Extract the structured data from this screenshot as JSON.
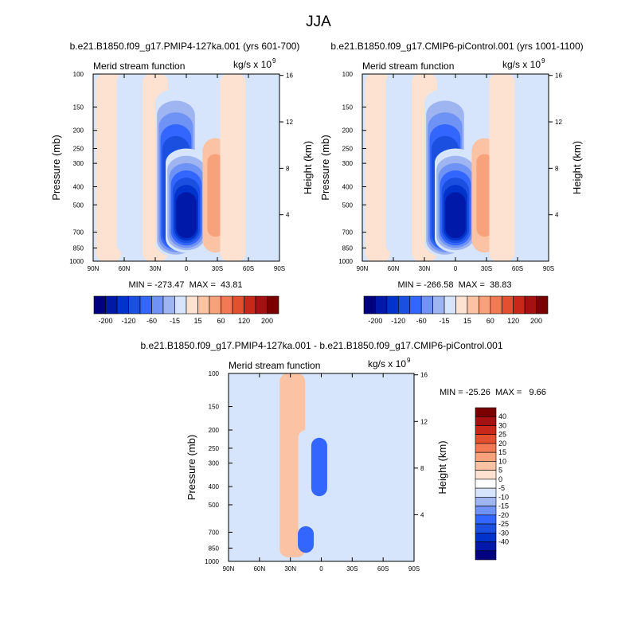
{
  "suptitle": "JJA",
  "colors": {
    "abs_palette": [
      "#000080",
      "#0019a8",
      "#0033cc",
      "#1a4fe0",
      "#3366ff",
      "#6f92f5",
      "#9eb5f2",
      "#d6e5fb",
      "#fde2d2",
      "#fcc2a4",
      "#f8a27c",
      "#f17a55",
      "#e2502f",
      "#c8281a",
      "#a51010",
      "#7a0000"
    ],
    "diff_palette": [
      "#000080",
      "#0019a8",
      "#0033cc",
      "#1a4fe0",
      "#3366ff",
      "#6f92f5",
      "#9eb5f2",
      "#d6e5fb",
      "#ffffff",
      "#fde2d2",
      "#fcc2a4",
      "#f8a27c",
      "#f17a55",
      "#e2502f",
      "#c8281a",
      "#a51010",
      "#7a0000"
    ]
  },
  "chart_data": [
    {
      "type": "heatmap",
      "title": "b.e21.B1850.f09_g17.PMIP4-127ka.001 (yrs 601-700)",
      "subtitle_left": "Merid stream function",
      "units": "kg/s x 10",
      "units_exp": "9",
      "xlabel": "",
      "ylabel": "Pressure (mb)",
      "ylabel_right": "Height (km)",
      "x_ticks": [
        "90N",
        "60N",
        "30N",
        "0",
        "30S",
        "60S",
        "90S"
      ],
      "y_ticks": [
        "100",
        "150",
        "200",
        "250",
        "300",
        "400",
        "500",
        "700",
        "850",
        "1000"
      ],
      "y_right_ticks": [
        "16",
        "12",
        "8",
        "4"
      ],
      "xlim": [
        90,
        -90
      ],
      "ylim": [
        1000,
        100
      ],
      "y_log": true,
      "stats": "MIN = -273.47  MAX =  43.81",
      "min": -273.47,
      "max": 43.81,
      "cells": [
        {
          "lat": 75,
          "pmin": 100,
          "pmax": 1000,
          "v": 5
        },
        {
          "lat": 55,
          "pmin": 100,
          "pmax": 900,
          "v": -5
        },
        {
          "lat": 30,
          "pmin": 100,
          "pmax": 1000,
          "v": 5
        },
        {
          "lat": 10,
          "pmin": 120,
          "pmax": 950,
          "v": -120
        },
        {
          "lat": 0,
          "pmin": 250,
          "pmax": 900,
          "v": -200
        },
        {
          "lat": -28,
          "pmin": 220,
          "pmax": 900,
          "v": 30
        },
        {
          "lat": -45,
          "pmin": 100,
          "pmax": 1000,
          "v": 5
        },
        {
          "lat": -75,
          "pmin": 100,
          "pmax": 1000,
          "v": -5
        }
      ]
    },
    {
      "type": "heatmap",
      "title": "b.e21.B1850.f09_g17.CMIP6-piControl.001 (yrs 1001-1100)",
      "subtitle_left": "Merid stream function",
      "units": "kg/s x 10",
      "units_exp": "9",
      "xlabel": "",
      "ylabel": "Pressure (mb)",
      "ylabel_right": "Height (km)",
      "x_ticks": [
        "90N",
        "60N",
        "30N",
        "0",
        "30S",
        "60S",
        "90S"
      ],
      "y_ticks": [
        "100",
        "150",
        "200",
        "250",
        "300",
        "400",
        "500",
        "700",
        "850",
        "1000"
      ],
      "y_right_ticks": [
        "16",
        "12",
        "8",
        "4"
      ],
      "xlim": [
        90,
        -90
      ],
      "ylim": [
        1000,
        100
      ],
      "y_log": true,
      "stats": "MIN = -266.58  MAX =  38.83",
      "min": -266.58,
      "max": 38.83,
      "cells": [
        {
          "lat": 75,
          "pmin": 100,
          "pmax": 1000,
          "v": 5
        },
        {
          "lat": 55,
          "pmin": 100,
          "pmax": 900,
          "v": -5
        },
        {
          "lat": 30,
          "pmin": 100,
          "pmax": 1000,
          "v": 5
        },
        {
          "lat": 10,
          "pmin": 120,
          "pmax": 950,
          "v": -120
        },
        {
          "lat": 0,
          "pmin": 250,
          "pmax": 900,
          "v": -200
        },
        {
          "lat": -28,
          "pmin": 220,
          "pmax": 900,
          "v": 30
        },
        {
          "lat": -45,
          "pmin": 100,
          "pmax": 1000,
          "v": 5
        },
        {
          "lat": -75,
          "pmin": 100,
          "pmax": 1000,
          "v": -5
        }
      ]
    },
    {
      "type": "heatmap",
      "title": "b.e21.B1850.f09_g17.PMIP4-127ka.001 - b.e21.B1850.f09_g17.CMIP6-piControl.001",
      "subtitle_left": "Merid stream function",
      "units": "kg/s x 10",
      "units_exp": "9",
      "xlabel": "",
      "ylabel": "Pressure (mb)",
      "ylabel_right": "Height (km)",
      "x_ticks": [
        "90N",
        "60N",
        "30N",
        "0",
        "30S",
        "60S",
        "90S"
      ],
      "y_ticks": [
        "100",
        "150",
        "200",
        "250",
        "300",
        "400",
        "500",
        "700",
        "850",
        "1000"
      ],
      "y_right_ticks": [
        "16",
        "12",
        "8",
        "4"
      ],
      "xlim": [
        90,
        -90
      ],
      "ylim": [
        1000,
        100
      ],
      "y_log": true,
      "stats": "MIN = -25.26  MAX =   9.66",
      "min": -25.26,
      "max": 9.66,
      "cells": [
        {
          "lat": 60,
          "pmin": 100,
          "pmax": 1000,
          "v": -5
        },
        {
          "lat": 28,
          "pmin": 100,
          "pmax": 950,
          "v": 5
        },
        {
          "lat": 10,
          "pmin": 200,
          "pmax": 900,
          "v": -5
        },
        {
          "lat": 2,
          "pmin": 220,
          "pmax": 450,
          "v": -20
        },
        {
          "lat": 15,
          "pmin": 650,
          "pmax": 900,
          "v": -20
        },
        {
          "lat": -30,
          "pmin": 100,
          "pmax": 1000,
          "v": -5
        },
        {
          "lat": -70,
          "pmin": 100,
          "pmax": 1000,
          "v": -5
        }
      ]
    }
  ],
  "colorbars": [
    {
      "labels": [
        "-200",
        "-120",
        "-60",
        "-15",
        "15",
        "60",
        "120",
        "200"
      ],
      "orientation": "horizontal"
    },
    {
      "labels": [
        "-200",
        "-120",
        "-60",
        "-15",
        "15",
        "60",
        "120",
        "200"
      ],
      "orientation": "horizontal"
    },
    {
      "labels": [
        "40",
        "30",
        "25",
        "20",
        "15",
        "10",
        "5",
        "0",
        "-5",
        "-10",
        "-15",
        "-20",
        "-25",
        "-30",
        "-40"
      ],
      "orientation": "vertical"
    }
  ]
}
